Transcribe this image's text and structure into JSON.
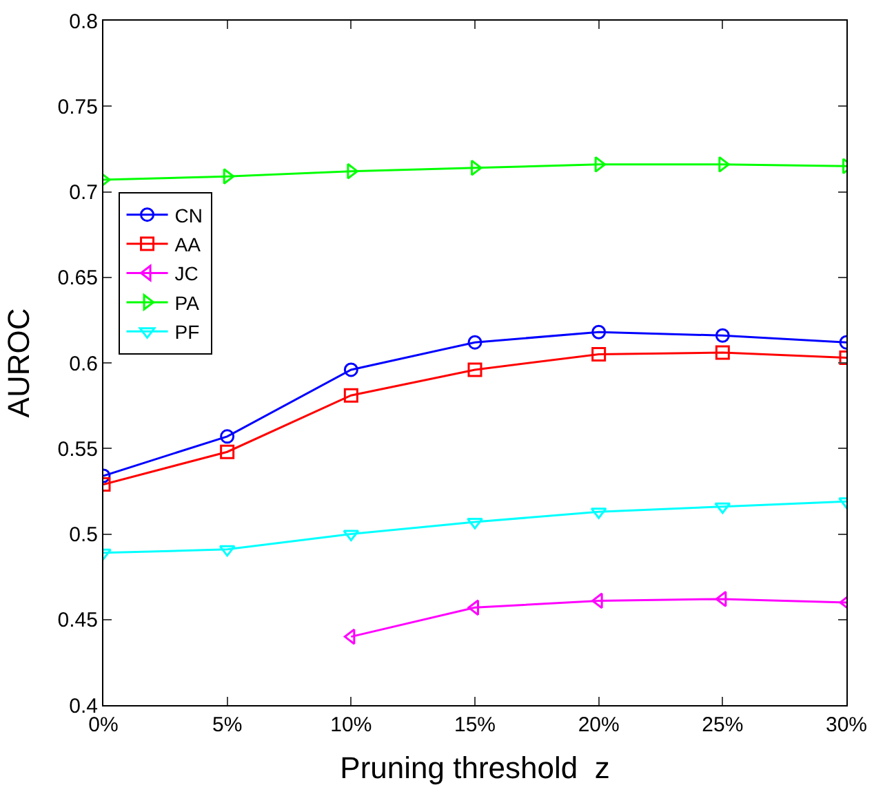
{
  "chart_data": {
    "type": "line",
    "xlabel": "Pruning threshold  z",
    "ylabel": "AUROC",
    "categories": [
      "0%",
      "5%",
      "10%",
      "15%",
      "20%",
      "25%",
      "30%"
    ],
    "ylim": [
      0.4,
      0.8
    ],
    "yticks": [
      0.4,
      0.45,
      0.5,
      0.55,
      0.6,
      0.65,
      0.7,
      0.75,
      0.8
    ],
    "grid": false,
    "legend": "top left",
    "line_style": "solid",
    "series": [
      {
        "name": "CN",
        "color": "#0000ff",
        "marker": "circle",
        "values": [
          0.534,
          0.557,
          0.596,
          0.612,
          0.618,
          0.616,
          0.612
        ]
      },
      {
        "name": "AA",
        "color": "#ff0000",
        "marker": "square",
        "values": [
          0.529,
          0.548,
          0.581,
          0.596,
          0.605,
          0.606,
          0.603
        ]
      },
      {
        "name": "JC",
        "color": "#ff00ff",
        "marker": "triangle-left",
        "values": [
          null,
          null,
          0.44,
          0.457,
          0.461,
          0.462,
          0.46
        ]
      },
      {
        "name": "PA",
        "color": "#00ff00",
        "marker": "triangle-right",
        "values": [
          0.707,
          0.709,
          0.712,
          0.714,
          0.716,
          0.716,
          0.715
        ]
      },
      {
        "name": "PF",
        "color": "#00ffff",
        "marker": "triangle-down",
        "values": [
          0.489,
          0.491,
          0.5,
          0.507,
          0.513,
          0.516,
          0.519
        ]
      }
    ]
  }
}
